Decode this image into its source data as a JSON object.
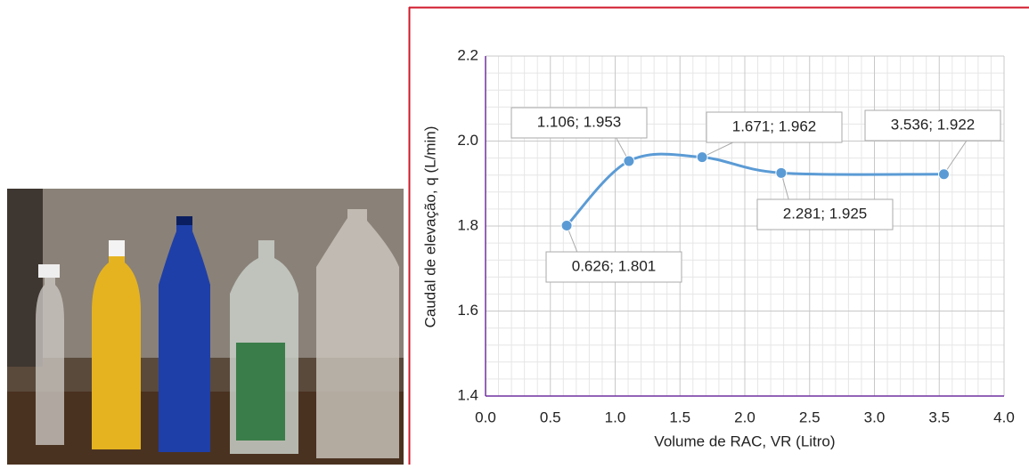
{
  "chart_data": {
    "type": "line",
    "x_label": "Volume de RAC, VR (Litro)",
    "y_label": "Caudal de elevação, q (L/min)",
    "xlim": [
      0,
      4
    ],
    "ylim": [
      1.4,
      2.2
    ],
    "xticks": [
      {
        "value": 0,
        "label": "0.0"
      },
      0.5,
      {
        "value": 1,
        "label": "1.0"
      },
      1.5,
      {
        "value": 2,
        "label": "2.0"
      },
      2.5,
      {
        "value": 3,
        "label": "3.0"
      },
      3.5,
      {
        "value": 4,
        "label": "4.0"
      }
    ],
    "yticks": [
      1.4,
      1.6,
      1.8,
      {
        "value": 2,
        "label": "2.0"
      },
      2.2
    ],
    "grid": true,
    "x": [
      0.626,
      1.106,
      1.671,
      2.281,
      3.536
    ],
    "series": [
      {
        "color": "#5b9bd5",
        "values": [
          1.801,
          1.953,
          1.962,
          1.925,
          1.922
        ],
        "value_labels": [
          "0.626; 1.801",
          "1.106; 1.953",
          "1.671; 1.962",
          "2.281; 1.925",
          "3.536; 1.922"
        ]
      }
    ]
  }
}
